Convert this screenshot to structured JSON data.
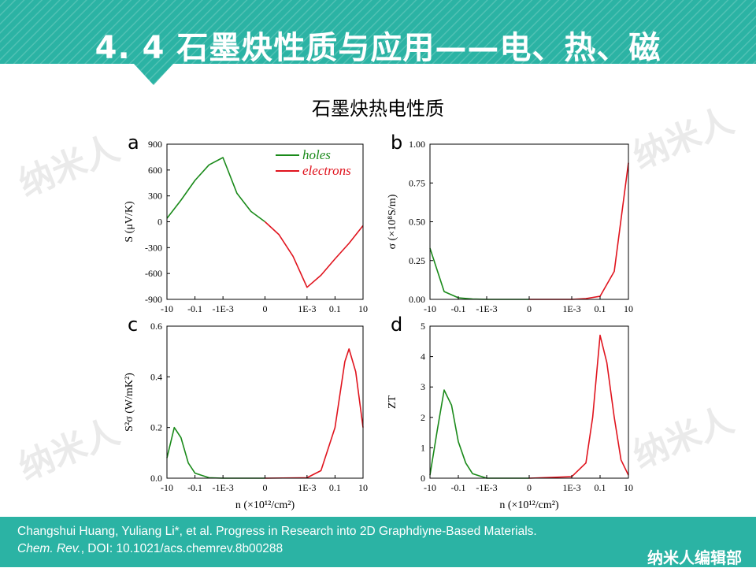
{
  "header": {
    "title": "4. 4  石墨炔性质与应用——电、热、磁",
    "bg_color": "#2bb3a4"
  },
  "subtitle": "石墨炔热电性质",
  "watermark": {
    "text": "纳米人"
  },
  "footer": {
    "citation_line1": "Changshui Huang, Yuliang Li*, et al. Progress in Research into 2D Graphdiyne-Based Materials.",
    "journal": "Chem. Rev.",
    "doi_text": ", DOI: 10.1021/acs.chemrev.8b00288",
    "editor": "纳米人编辑部"
  },
  "colors": {
    "holes": "#1a8a1a",
    "electrons": "#e0141e"
  },
  "chart_data": [
    {
      "panel": "a",
      "type": "line",
      "x_tick_labels": [
        "-10",
        "-0.1",
        "-1E-3",
        "0",
        "1E-3",
        "0.1",
        "10"
      ],
      "y_tick_labels": [
        "-900",
        "-600",
        "-300",
        "0",
        "300",
        "600",
        "900"
      ],
      "ylim": [
        -900,
        900
      ],
      "ylabel": "S (μV/K)",
      "legend": [
        "holes",
        "electrons"
      ],
      "series": [
        {
          "name": "holes",
          "x": [
            -10,
            -1,
            -0.1,
            -0.01,
            -0.001,
            -0.0001,
            -1e-05,
            0
          ],
          "y": [
            40,
            250,
            480,
            660,
            745,
            330,
            120,
            0
          ]
        },
        {
          "name": "electrons",
          "x": [
            0,
            1e-05,
            0.0001,
            0.001,
            0.01,
            0.1,
            1,
            10
          ],
          "y": [
            0,
            -150,
            -400,
            -760,
            -620,
            -430,
            -250,
            -45
          ]
        }
      ]
    },
    {
      "panel": "b",
      "type": "line",
      "x_tick_labels": [
        "-10",
        "-0.1",
        "-1E-3",
        "0",
        "1E-3",
        "0.1",
        "10"
      ],
      "y_tick_labels": [
        "0.00",
        "0.25",
        "0.50",
        "0.75",
        "1.00"
      ],
      "ylim": [
        0,
        1
      ],
      "ylabel": "σ (×10⁸S/m)",
      "series": [
        {
          "name": "holes",
          "x": [
            -10,
            -1,
            -0.1,
            -0.01,
            -0.001,
            0
          ],
          "y": [
            0.33,
            0.05,
            0.01,
            0.002,
            0.0,
            0.0
          ]
        },
        {
          "name": "electrons",
          "x": [
            0,
            0.001,
            0.01,
            0.1,
            1,
            10
          ],
          "y": [
            0.0,
            0.0,
            0.005,
            0.02,
            0.18,
            0.88
          ]
        }
      ]
    },
    {
      "panel": "c",
      "type": "line",
      "x_tick_labels": [
        "-10",
        "-0.1",
        "-1E-3",
        "0",
        "1E-3",
        "0.1",
        "10"
      ],
      "y_tick_labels": [
        "0.0",
        "0.2",
        "0.4",
        "0.6"
      ],
      "ylim": [
        0,
        0.6
      ],
      "xlabel": "n (×10¹²/cm²)",
      "ylabel": "S²σ (W/mK²)",
      "series": [
        {
          "name": "holes",
          "x": [
            -10,
            -3,
            -1,
            -0.3,
            -0.1,
            -0.01,
            -0.001,
            0
          ],
          "y": [
            0.08,
            0.2,
            0.16,
            0.06,
            0.02,
            0.002,
            0.0,
            0.0
          ]
        },
        {
          "name": "electrons",
          "x": [
            0,
            0.001,
            0.01,
            0.1,
            0.5,
            1,
            3,
            10
          ],
          "y": [
            0.0,
            0.002,
            0.03,
            0.2,
            0.46,
            0.51,
            0.42,
            0.2
          ]
        }
      ]
    },
    {
      "panel": "d",
      "type": "line",
      "x_tick_labels": [
        "-10",
        "-0.1",
        "-1E-3",
        "0",
        "1E-3",
        "0.1",
        "10"
      ],
      "y_tick_labels": [
        "0",
        "1",
        "2",
        "3",
        "4",
        "5"
      ],
      "ylim": [
        0,
        5
      ],
      "xlabel": "n (×10¹²/cm²)",
      "ylabel": "ZT",
      "series": [
        {
          "name": "holes",
          "x": [
            -10,
            -3,
            -1,
            -0.3,
            -0.1,
            -0.03,
            -0.01,
            -0.001,
            0
          ],
          "y": [
            0.1,
            1.6,
            2.9,
            2.4,
            1.2,
            0.5,
            0.15,
            0.0,
            0.0
          ]
        },
        {
          "name": "electrons",
          "x": [
            0,
            0.001,
            0.01,
            0.03,
            0.1,
            0.3,
            1,
            3,
            10
          ],
          "y": [
            0.0,
            0.05,
            0.5,
            2.0,
            4.7,
            3.8,
            2.0,
            0.6,
            0.1
          ]
        }
      ]
    }
  ]
}
